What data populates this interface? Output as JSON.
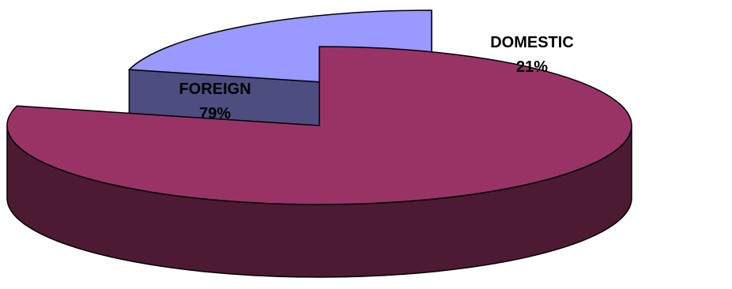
{
  "chart_data": {
    "type": "pie",
    "style": "3d-exploded",
    "slices": [
      {
        "label": "FOREIGN",
        "value": 79,
        "value_label": "79%",
        "top_color": "#993366",
        "side_color": "#4d1a33"
      },
      {
        "label": "DOMESTIC",
        "value": 21,
        "value_label": "21%",
        "top_color": "#9999ff",
        "side_color": "#4d4d80"
      }
    ],
    "legend": "none"
  }
}
